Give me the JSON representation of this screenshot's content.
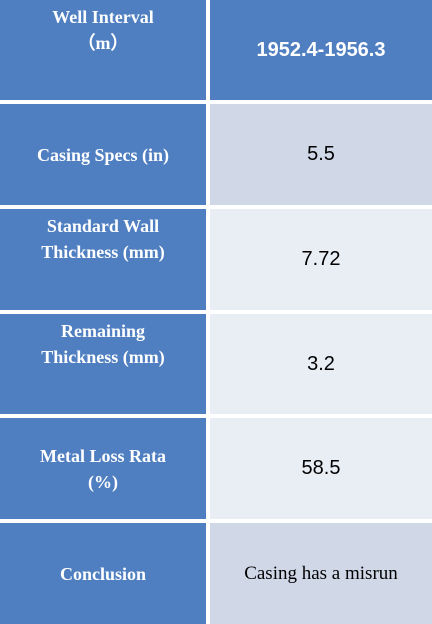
{
  "table": {
    "rows": [
      {
        "label_line1": "Well Interval",
        "label_line2": "（m）",
        "value": "1952.4-1956.3"
      },
      {
        "label_line1": "Casing Specs (in)",
        "label_line2": "",
        "value": "5.5"
      },
      {
        "label_line1": "Standard Wall",
        "label_line2": "Thickness (mm)",
        "value": "7.72"
      },
      {
        "label_line1": "Remaining",
        "label_line2": "Thickness (mm)",
        "value": "3.2"
      },
      {
        "label_line1": "Metal Loss Rata",
        "label_line2": "(%)",
        "value": "58.5"
      },
      {
        "label_line1": "Conclusion",
        "label_line2": "",
        "value": "Casing has a misrun"
      }
    ]
  },
  "colors": {
    "header_blue": "#4f7fc0",
    "cell_dark": "#d0d8e8",
    "cell_light": "#e9edf4"
  }
}
